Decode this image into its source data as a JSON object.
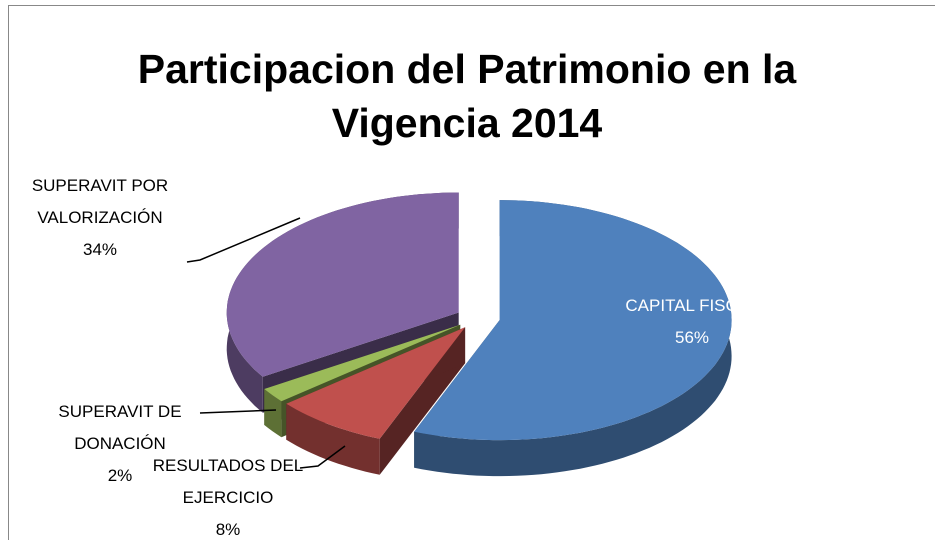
{
  "chart_data": {
    "type": "pie",
    "title": "Participacion del Patrimonio en la Vigencia 2014",
    "categories": [
      "CAPITAL FISCAL",
      "RESULTADOS DEL EJERCICIO",
      "SUPERAVIT DE DONACIÓN",
      "SUPERAVIT POR VALORIZACIÓN"
    ],
    "values": [
      56,
      8,
      2,
      34
    ],
    "value_labels": [
      "56%",
      "8%",
      "2%",
      "34%"
    ],
    "colors": [
      "#4f81bd",
      "#c0504d",
      "#9bbb59",
      "#8064a2"
    ]
  }
}
